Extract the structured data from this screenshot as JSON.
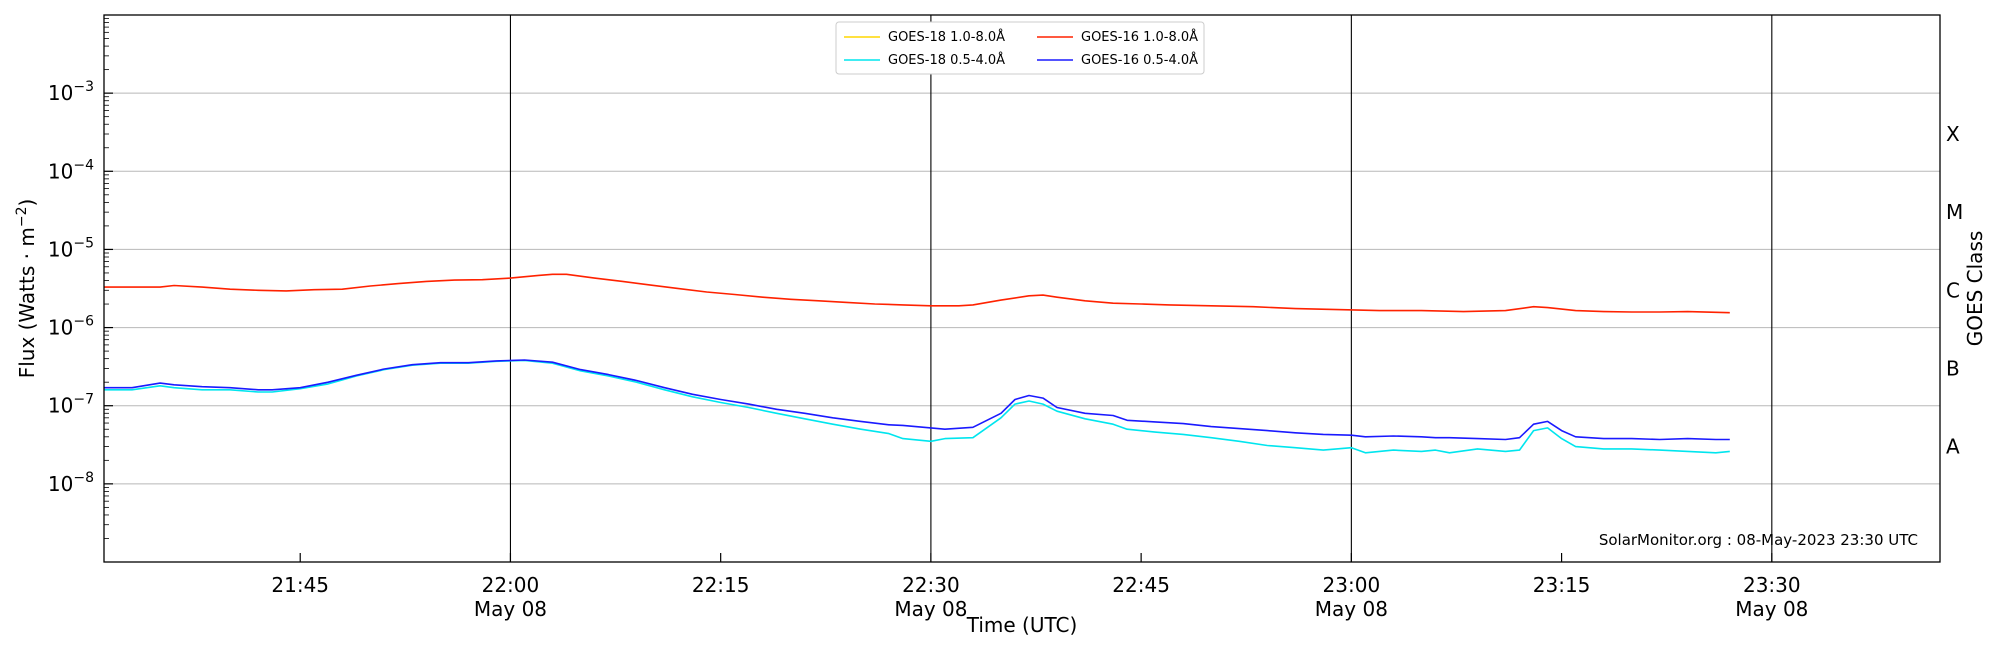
{
  "chart_data": {
    "type": "line",
    "xlabel": "Time (UTC)",
    "ylabel": "Flux (Watts · m⁻²)",
    "y2label": "GOES Class",
    "yscale": "log",
    "xlim": [
      "21:31",
      "23:42"
    ],
    "ylim": [
      1e-09,
      0.01
    ],
    "grid": "horizontal at each decade",
    "legend_placement": "top-center",
    "credit": "SolarMonitor.org : 08-May-2023 23:30 UTC",
    "yticks": [
      {
        "value": 1e-08,
        "base": "10",
        "exp": "−8"
      },
      {
        "value": 1e-07,
        "base": "10",
        "exp": "−7"
      },
      {
        "value": 1e-06,
        "base": "10",
        "exp": "−6"
      },
      {
        "value": 1e-05,
        "base": "10",
        "exp": "−5"
      },
      {
        "value": 0.0001,
        "base": "10",
        "exp": "−4"
      },
      {
        "value": 0.001,
        "base": "10",
        "exp": "−3"
      }
    ],
    "classes": [
      {
        "label": "A",
        "value": 3e-08
      },
      {
        "label": "B",
        "value": 3e-07
      },
      {
        "label": "C",
        "value": 3e-06
      },
      {
        "label": "M",
        "value": 3e-05
      },
      {
        "label": "X",
        "value": 0.0003
      }
    ],
    "xticks": [
      {
        "time": "21:45",
        "date": ""
      },
      {
        "time": "22:00",
        "date": "May 08"
      },
      {
        "time": "22:15",
        "date": ""
      },
      {
        "time": "22:30",
        "date": "May 08"
      },
      {
        "time": "22:45",
        "date": ""
      },
      {
        "time": "23:00",
        "date": "May 08"
      },
      {
        "time": "23:15",
        "date": ""
      },
      {
        "time": "23:30",
        "date": "May 08"
      }
    ],
    "vlines": [
      "22:00",
      "22:30",
      "23:00",
      "23:30"
    ],
    "series": [
      {
        "name": "GOES-18 1.0-8.0Å",
        "color": "#ffd700",
        "x": [],
        "y": []
      },
      {
        "name": "GOES-18 0.5-4.0Å",
        "color": "#00e5ee",
        "x": [
          "21:31",
          "21:33",
          "21:35",
          "21:36",
          "21:38",
          "21:40",
          "21:42",
          "21:43",
          "21:45",
          "21:47",
          "21:49",
          "21:51",
          "21:53",
          "21:55",
          "21:57",
          "21:59",
          "22:01",
          "22:03",
          "22:05",
          "22:07",
          "22:09",
          "22:11",
          "22:13",
          "22:15",
          "22:17",
          "22:19",
          "22:21",
          "22:23",
          "22:25",
          "22:27",
          "22:28",
          "22:30",
          "22:31",
          "22:33",
          "22:35",
          "22:36",
          "22:37",
          "22:38",
          "22:39",
          "22:41",
          "22:43",
          "22:44",
          "22:46",
          "22:48",
          "22:50",
          "22:52",
          "22:54",
          "22:56",
          "22:58",
          "23:00",
          "23:01",
          "23:03",
          "23:05",
          "23:06",
          "23:07",
          "23:09",
          "23:11",
          "23:12",
          "23:13",
          "23:14",
          "23:15",
          "23:16",
          "23:18",
          "23:20",
          "23:22",
          "23:24",
          "23:26",
          "23:27"
        ],
        "y": [
          1.6e-07,
          1.6e-07,
          1.8e-07,
          1.7e-07,
          1.6e-07,
          1.6e-07,
          1.5e-07,
          1.5e-07,
          1.65e-07,
          1.9e-07,
          2.4e-07,
          2.9e-07,
          3.3e-07,
          3.5e-07,
          3.5e-07,
          3.7e-07,
          3.8e-07,
          3.5e-07,
          2.8e-07,
          2.4e-07,
          2e-07,
          1.6e-07,
          1.3e-07,
          1.1e-07,
          9.5e-08,
          8e-08,
          6.8e-08,
          5.8e-08,
          5e-08,
          4.4e-08,
          3.8e-08,
          3.5e-08,
          3.8e-08,
          3.9e-08,
          7e-08,
          1.05e-07,
          1.15e-07,
          1.05e-07,
          8.5e-08,
          6.8e-08,
          5.8e-08,
          5e-08,
          4.6e-08,
          4.3e-08,
          3.9e-08,
          3.5e-08,
          3.1e-08,
          2.9e-08,
          2.7e-08,
          2.9e-08,
          2.5e-08,
          2.7e-08,
          2.6e-08,
          2.7e-08,
          2.5e-08,
          2.8e-08,
          2.6e-08,
          2.7e-08,
          4.8e-08,
          5.2e-08,
          3.8e-08,
          3e-08,
          2.8e-08,
          2.8e-08,
          2.7e-08,
          2.6e-08,
          2.5e-08,
          2.6e-08
        ]
      },
      {
        "name": "GOES-16 1.0-8.0Å",
        "color": "#ff2200",
        "x": [
          "21:31",
          "21:33",
          "21:35",
          "21:36",
          "21:38",
          "21:40",
          "21:42",
          "21:44",
          "21:46",
          "21:48",
          "21:50",
          "21:52",
          "21:54",
          "21:56",
          "21:58",
          "22:00",
          "22:02",
          "22:03",
          "22:04",
          "22:06",
          "22:08",
          "22:10",
          "22:12",
          "22:14",
          "22:16",
          "22:18",
          "22:20",
          "22:22",
          "22:24",
          "22:26",
          "22:28",
          "22:30",
          "22:32",
          "22:33",
          "22:35",
          "22:37",
          "22:38",
          "22:39",
          "22:41",
          "22:43",
          "22:45",
          "22:47",
          "22:50",
          "22:53",
          "22:56",
          "22:59",
          "23:02",
          "23:05",
          "23:08",
          "23:11",
          "23:13",
          "23:14",
          "23:16",
          "23:18",
          "23:20",
          "23:22",
          "23:24",
          "23:27"
        ],
        "y": [
          3.3e-06,
          3.3e-06,
          3.3e-06,
          3.45e-06,
          3.3e-06,
          3.1e-06,
          3e-06,
          2.95e-06,
          3.05e-06,
          3.1e-06,
          3.4e-06,
          3.65e-06,
          3.9e-06,
          4.05e-06,
          4.1e-06,
          4.3e-06,
          4.65e-06,
          4.8e-06,
          4.8e-06,
          4.3e-06,
          3.9e-06,
          3.5e-06,
          3.15e-06,
          2.85e-06,
          2.65e-06,
          2.45e-06,
          2.3e-06,
          2.2e-06,
          2.1e-06,
          2e-06,
          1.95e-06,
          1.9e-06,
          1.9e-06,
          1.95e-06,
          2.25e-06,
          2.55e-06,
          2.6e-06,
          2.45e-06,
          2.2e-06,
          2.05e-06,
          2e-06,
          1.95e-06,
          1.9e-06,
          1.85e-06,
          1.75e-06,
          1.7e-06,
          1.65e-06,
          1.65e-06,
          1.6e-06,
          1.65e-06,
          1.85e-06,
          1.8e-06,
          1.65e-06,
          1.6e-06,
          1.58e-06,
          1.58e-06,
          1.6e-06,
          1.55e-06
        ]
      },
      {
        "name": "GOES-16 0.5-4.0Å",
        "color": "#1a1aff",
        "x": [
          "21:31",
          "21:33",
          "21:35",
          "21:36",
          "21:38",
          "21:40",
          "21:42",
          "21:43",
          "21:45",
          "21:47",
          "21:49",
          "21:51",
          "21:53",
          "21:55",
          "21:57",
          "21:59",
          "22:01",
          "22:03",
          "22:05",
          "22:07",
          "22:09",
          "22:11",
          "22:13",
          "22:15",
          "22:17",
          "22:19",
          "22:21",
          "22:23",
          "22:25",
          "22:27",
          "22:28",
          "22:30",
          "22:31",
          "22:33",
          "22:35",
          "22:36",
          "22:37",
          "22:38",
          "22:39",
          "22:41",
          "22:43",
          "22:44",
          "22:46",
          "22:48",
          "22:50",
          "22:52",
          "22:54",
          "22:56",
          "22:58",
          "23:00",
          "23:01",
          "23:03",
          "23:05",
          "23:06",
          "23:07",
          "23:09",
          "23:11",
          "23:12",
          "23:13",
          "23:14",
          "23:15",
          "23:16",
          "23:18",
          "23:20",
          "23:22",
          "23:24",
          "23:26",
          "23:27"
        ],
        "y": [
          1.7e-07,
          1.7e-07,
          1.95e-07,
          1.85e-07,
          1.75e-07,
          1.7e-07,
          1.6e-07,
          1.6e-07,
          1.7e-07,
          2e-07,
          2.45e-07,
          2.95e-07,
          3.35e-07,
          3.55e-07,
          3.55e-07,
          3.75e-07,
          3.85e-07,
          3.6e-07,
          2.9e-07,
          2.5e-07,
          2.1e-07,
          1.7e-07,
          1.4e-07,
          1.2e-07,
          1.05e-07,
          9e-08,
          8e-08,
          7e-08,
          6.3e-08,
          5.7e-08,
          5.6e-08,
          5.2e-08,
          5e-08,
          5.3e-08,
          8e-08,
          1.2e-07,
          1.35e-07,
          1.25e-07,
          9.5e-08,
          8e-08,
          7.5e-08,
          6.5e-08,
          6.2e-08,
          5.9e-08,
          5.4e-08,
          5.1e-08,
          4.8e-08,
          4.5e-08,
          4.3e-08,
          4.2e-08,
          4e-08,
          4.1e-08,
          4e-08,
          3.9e-08,
          3.9e-08,
          3.8e-08,
          3.7e-08,
          3.9e-08,
          5.8e-08,
          6.3e-08,
          4.8e-08,
          4e-08,
          3.8e-08,
          3.8e-08,
          3.7e-08,
          3.8e-08,
          3.7e-08,
          3.7e-08
        ]
      }
    ]
  }
}
